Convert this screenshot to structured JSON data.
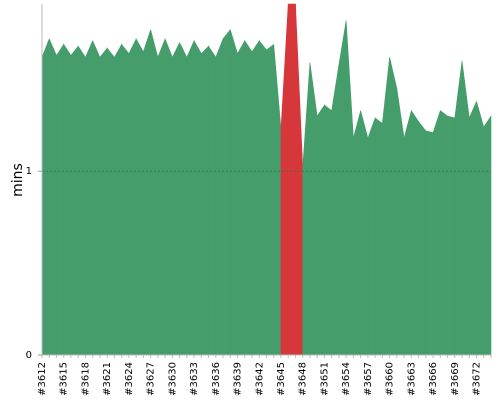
{
  "chart_data": {
    "type": "area",
    "y_label": "mins",
    "categories": [
      "#3612",
      null,
      null,
      "#3615",
      null,
      null,
      "#3618",
      null,
      null,
      "#3621",
      null,
      null,
      "#3624",
      null,
      null,
      "#3627",
      null,
      null,
      "#3630",
      null,
      null,
      "#3633",
      null,
      null,
      "#3636",
      null,
      null,
      "#3639",
      null,
      null,
      "#3642",
      null,
      null,
      "#3645",
      null,
      null,
      "#3648",
      null,
      null,
      "#3651",
      null,
      null,
      "#3654",
      null,
      null,
      "#3657",
      null,
      null,
      "#3660",
      null,
      null,
      "#3663",
      null,
      null,
      "#3666",
      null,
      null,
      "#3669",
      null,
      null,
      "#3672",
      null,
      null
    ],
    "series": [
      {
        "color": "#459d6b",
        "values": [
          1.62,
          1.72,
          1.63,
          1.69,
          1.63,
          1.68,
          1.62,
          1.71,
          1.62,
          1.67,
          1.62,
          1.69,
          1.64,
          1.72,
          1.65,
          1.77,
          1.62,
          1.72,
          1.62,
          1.7,
          1.62,
          1.71,
          1.64,
          1.68,
          1.62,
          1.72,
          1.77,
          1.64,
          1.71,
          1.65,
          1.71,
          1.66,
          1.69,
          1.23,
          1.91,
          1.91,
          1.02,
          1.59,
          1.3,
          1.36,
          1.33,
          1.58,
          1.82,
          1.18,
          1.33,
          1.18,
          1.29,
          1.26,
          1.62,
          1.45,
          1.18,
          1.33,
          1.27,
          1.22,
          1.21,
          1.33,
          1.3,
          1.29,
          1.6,
          1.29,
          1.38,
          1.24,
          1.3
        ],
        "point_colors": [
          "#459d6b",
          "#459d6b",
          "#459d6b",
          "#459d6b",
          "#459d6b",
          "#459d6b",
          "#459d6b",
          "#459d6b",
          "#459d6b",
          "#459d6b",
          "#459d6b",
          "#459d6b",
          "#459d6b",
          "#459d6b",
          "#459d6b",
          "#459d6b",
          "#459d6b",
          "#459d6b",
          "#459d6b",
          "#459d6b",
          "#459d6b",
          "#459d6b",
          "#459d6b",
          "#459d6b",
          "#459d6b",
          "#459d6b",
          "#459d6b",
          "#459d6b",
          "#459d6b",
          "#459d6b",
          "#459d6b",
          "#459d6b",
          "#459d6b",
          "#459d6b",
          "#d6373a",
          "#d6373a",
          "#d6373a",
          "#459d6b",
          "#459d6b",
          "#459d6b",
          "#459d6b",
          "#459d6b",
          "#459d6b",
          "#459d6b",
          "#459d6b",
          "#459d6b",
          "#459d6b",
          "#459d6b",
          "#459d6b",
          "#459d6b",
          "#459d6b",
          "#459d6b",
          "#459d6b",
          "#459d6b",
          "#459d6b",
          "#459d6b",
          "#459d6b",
          "#459d6b",
          "#459d6b",
          "#459d6b",
          "#459d6b",
          "#459d6b",
          "#459d6b"
        ]
      }
    ],
    "ylim": [
      0,
      1.91
    ],
    "yticks": [
      0,
      1
    ],
    "grid": true
  }
}
